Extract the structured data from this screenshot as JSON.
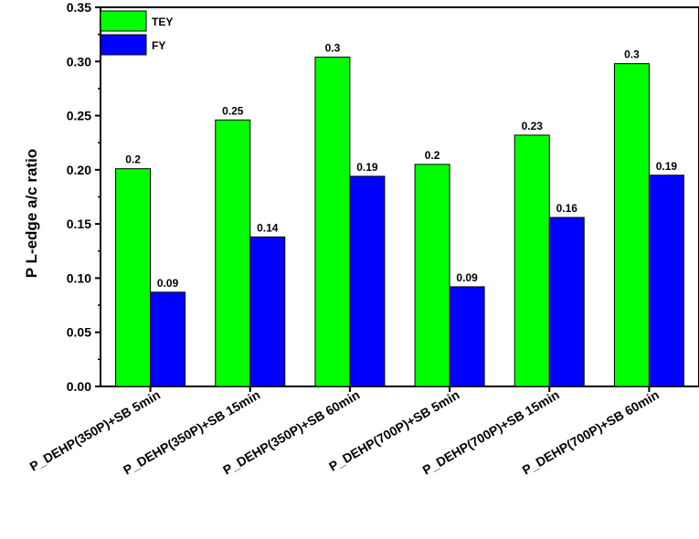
{
  "chart_data": {
    "type": "bar",
    "title": "",
    "xlabel": "",
    "ylabel": "P L-edge a/c ratio",
    "ylim": [
      0,
      0.35
    ],
    "yticks": [
      "0.00",
      "0.05",
      "0.10",
      "0.15",
      "0.20",
      "0.25",
      "0.30",
      "0.35"
    ],
    "categories": [
      "P_DEHP(350P)+SB 5min",
      "P_DEHP(350P)+SB 15min",
      "P_DEHP(350P)+SB 60min",
      "P_DEHP(700P)+SB 5min",
      "P_DEHP(700P)+SB 15min",
      "P_DEHP(700P)+SB 60min"
    ],
    "series": [
      {
        "name": "TEY",
        "color": "#00ff00",
        "values": [
          0.201,
          0.246,
          0.304,
          0.205,
          0.232,
          0.298
        ],
        "labels": [
          "0.2",
          "0.25",
          "0.3",
          "0.2",
          "0.23",
          "0.3"
        ]
      },
      {
        "name": "FY",
        "color": "#0000ff",
        "values": [
          0.087,
          0.138,
          0.194,
          0.092,
          0.156,
          0.195
        ],
        "labels": [
          "0.09",
          "0.14",
          "0.19",
          "0.09",
          "0.16",
          "0.19"
        ]
      }
    ],
    "legend": "top-left",
    "grid": false
  }
}
